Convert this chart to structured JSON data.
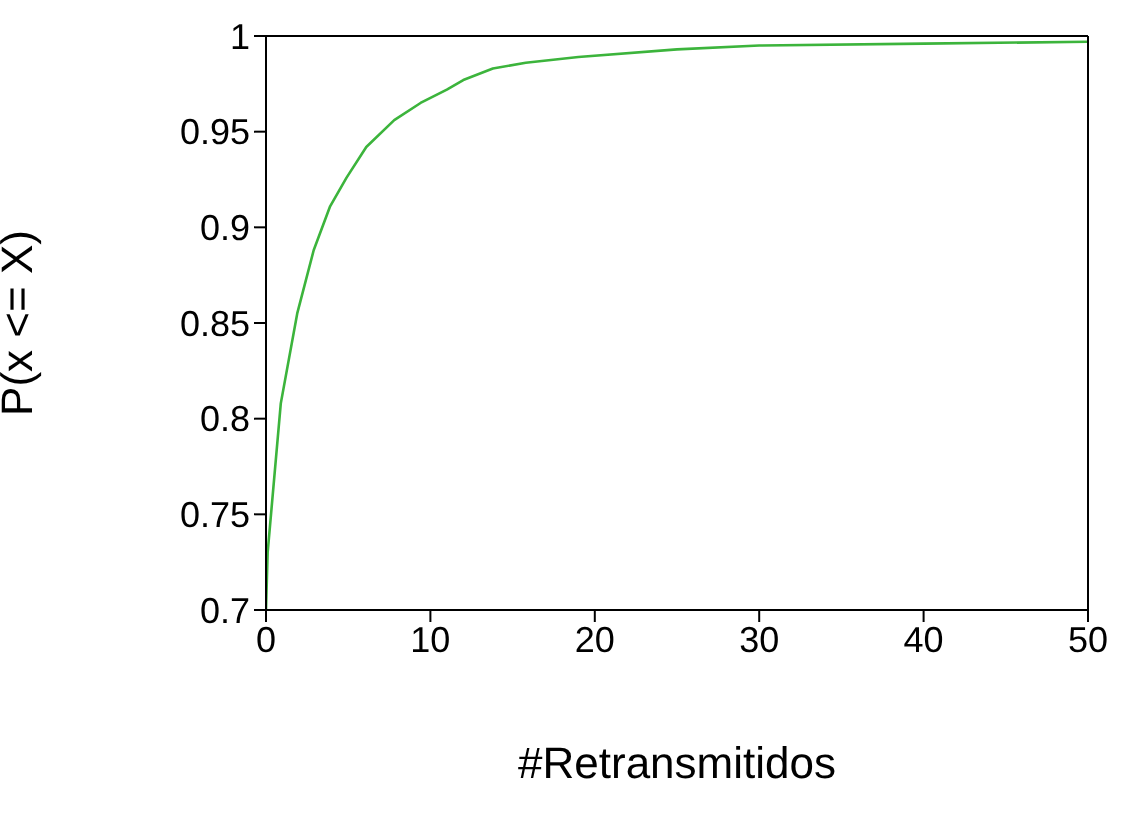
{
  "chart_data": {
    "type": "line",
    "xlabel": "#Retransmitidos",
    "ylabel": "P(x <= X)",
    "x": [
      0,
      0.1,
      0.9,
      1.9,
      2.9,
      3.9,
      4.9,
      6.1,
      7.8,
      9.4,
      11,
      12,
      13.8,
      15.8,
      19,
      25,
      30,
      40,
      50
    ],
    "series": [
      {
        "color": "#3cb43c",
        "values": [
          0.7,
          0.73,
          0.808,
          0.855,
          0.888,
          0.911,
          0.926,
          0.942,
          0.956,
          0.965,
          0.972,
          0.977,
          0.983,
          0.986,
          0.989,
          0.993,
          0.995,
          0.996,
          0.997
        ]
      }
    ],
    "xlim": [
      0,
      50
    ],
    "xticks": [
      0,
      10,
      20,
      30,
      40,
      50
    ],
    "ylim": [
      0.7,
      1
    ],
    "yticks": [
      0.7,
      0.75,
      0.8,
      0.85,
      0.9,
      0.95,
      1
    ],
    "grid": false,
    "legend": false,
    "marker": "none",
    "line_style": "solid"
  }
}
